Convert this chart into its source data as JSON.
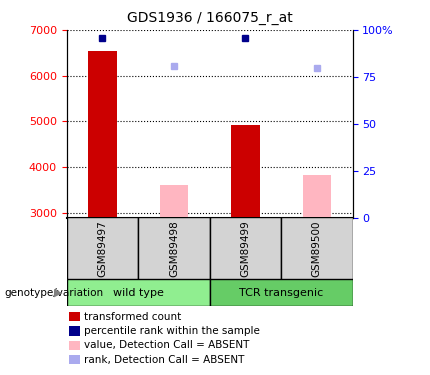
{
  "title": "GDS1936 / 166075_r_at",
  "samples": [
    "GSM89497",
    "GSM89498",
    "GSM89499",
    "GSM89500"
  ],
  "groups": [
    {
      "name": "wild type",
      "color": "#90EE90"
    },
    {
      "name": "TCR transgenic",
      "color": "#66CC66"
    }
  ],
  "bar_values": [
    6550,
    null,
    4920,
    null
  ],
  "bar_absent_values": [
    null,
    3620,
    null,
    3820
  ],
  "rank_values": [
    96,
    null,
    96,
    null
  ],
  "rank_absent_values": [
    null,
    81,
    null,
    80
  ],
  "bar_color": "#CC0000",
  "bar_absent_color": "#FFB6C1",
  "rank_color": "#00008B",
  "rank_absent_color": "#AAAAEE",
  "ylim_left": [
    2900,
    7000
  ],
  "ylim_right": [
    0,
    100
  ],
  "bar_width": 0.4,
  "sample_box_color": "#D3D3D3",
  "yticks_left": [
    3000,
    4000,
    5000,
    6000,
    7000
  ],
  "yticks_right": [
    0,
    25,
    50,
    75,
    100
  ],
  "ytick_right_labels": [
    "0",
    "25",
    "50",
    "75",
    "100%"
  ]
}
